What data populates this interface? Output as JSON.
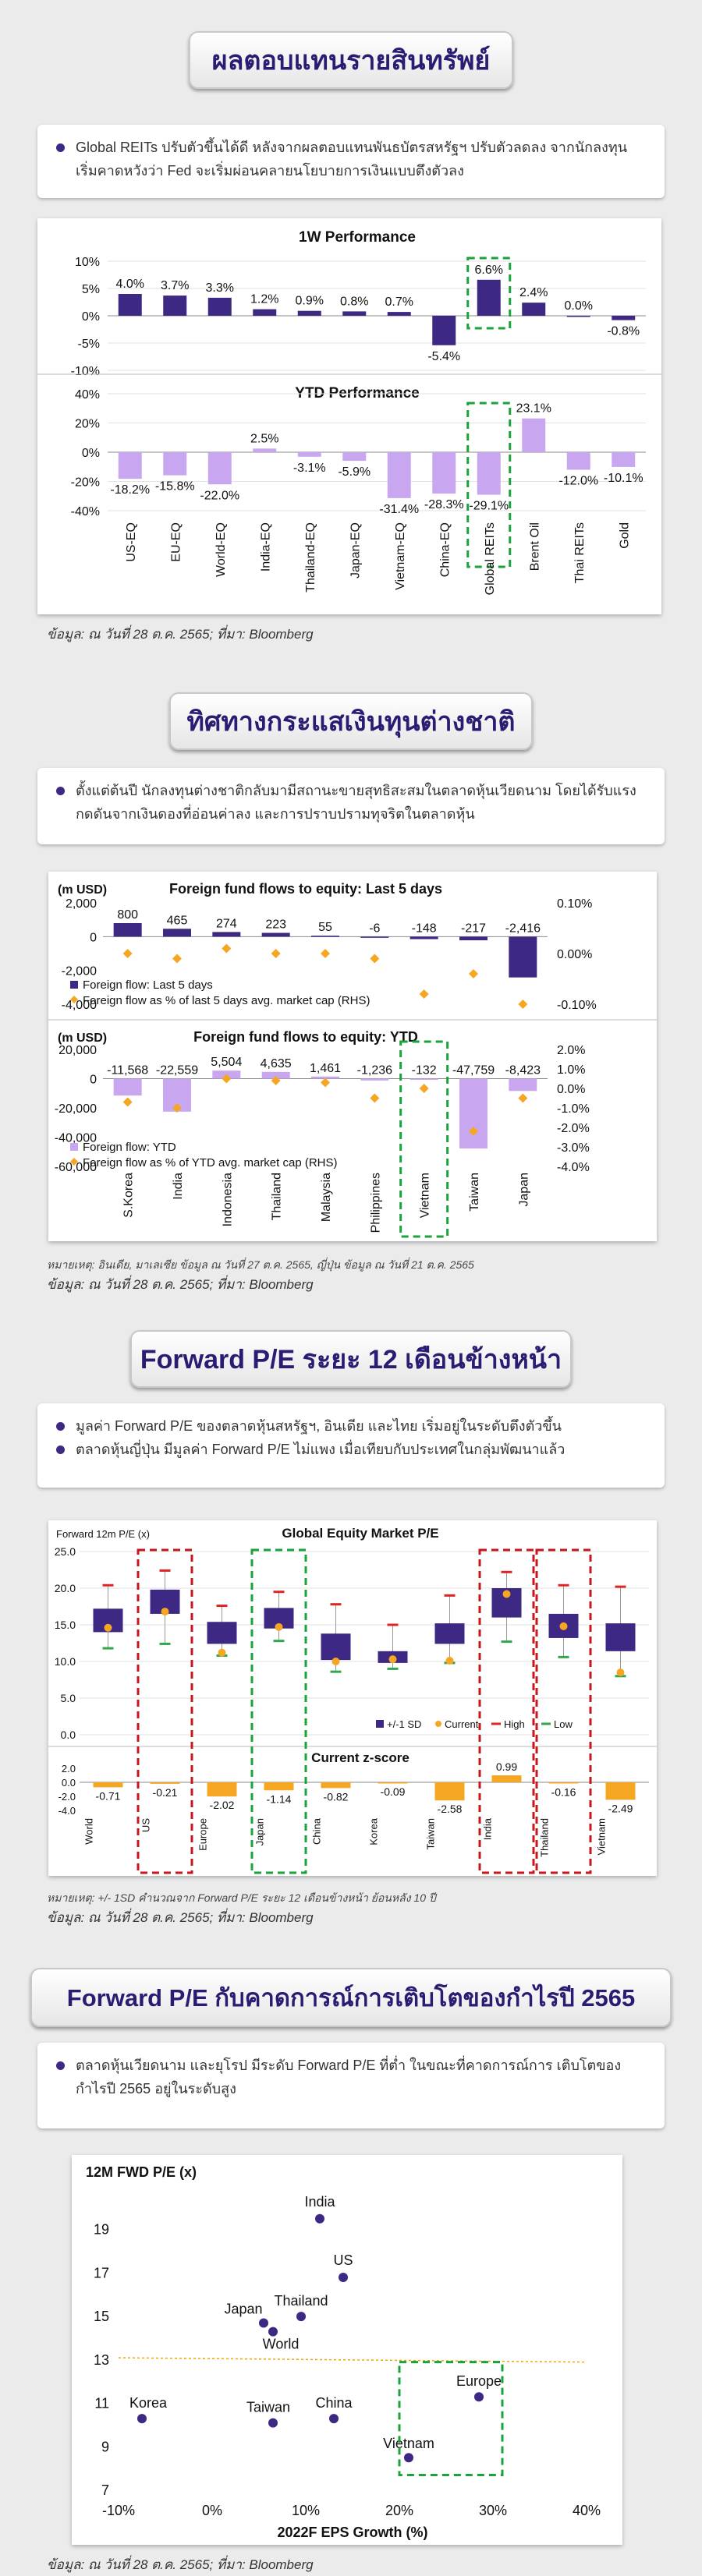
{
  "sections": [
    {
      "title": "ผลตอบแทนรายสินทรัพย์",
      "bullets": [
        "Global REITs ปรับตัวขึ้นได้ดี หลังจากผลตอบแทนพันธบัตรสหรัฐฯ ปรับตัวลดลง จากนักลงทุนเริ่มคาดหวังว่า Fed จะเริ่มผ่อนคลายนโยบายการเงินแบบตึงตัวลง"
      ],
      "source": "ข้อมูล: ณ วันที่ 28 ต.ค. 2565; ที่มา: Bloomberg"
    },
    {
      "title": "ทิศทางกระแสเงินทุนต่างชาติ",
      "bullets": [
        "ตั้งแต่ต้นปี นักลงทุนต่างชาติกลับมามีสถานะขายสุทธิสะสมในตลาดหุ้นเวียดนาม โดยได้รับแรงกดดันจากเงินดองที่อ่อนค่าลง และการปราบปรามทุจริตในตลาดหุ้น"
      ],
      "note": "หมายเหตุ: อินเดีย, มาเลเซีย ข้อมูล ณ วันที่ 27 ต.ค. 2565, ญี่ปุ่น ข้อมูล ณ วันที่ 21 ต.ค. 2565",
      "source": "ข้อมูล: ณ วันที่ 28 ต.ค. 2565; ที่มา: Bloomberg"
    },
    {
      "title": "Forward P/E ระยะ 12 เดือนข้างหน้า",
      "bullets": [
        "มูลค่า Forward P/E ของตลาดหุ้นสหรัฐฯ, อินเดีย และไทย เริ่มอยู่ในระดับตึงตัวขึ้น",
        "ตลาดหุ้นญี่ปุ่น มีมูลค่า Forward P/E ไม่แพง เมื่อเทียบกับประเทศในกลุ่มพัฒนาแล้ว"
      ],
      "note": "หมายเหตุ: +/- 1SD คำนวณจาก Forward P/E ระยะ 12 เดือนข้างหน้า ย้อนหลัง 10 ปี",
      "source": "ข้อมูล: ณ วันที่ 28 ต.ค. 2565; ที่มา: Bloomberg"
    },
    {
      "title": "Forward P/E กับคาดการณ์การเติบโตของกำไรปี 2565",
      "bullets": [
        "ตลาดหุ้นเวียดนาม และยุโรป มีระดับ Forward P/E ที่ต่ำ ในขณะที่คาดการณ์การ เติบโตของกำไรปี 2565 อยู่ในระดับสูง"
      ],
      "source": "ข้อมูล: ณ วันที่ 28 ต.ค. 2565; ที่มา: Bloomberg"
    }
  ],
  "chart_data": [
    {
      "type": "bar",
      "title": "1W Performance",
      "categories": [
        "US-EQ",
        "EU-EQ",
        "World-EQ",
        "India-EQ",
        "Thailand-EQ",
        "Japan-EQ",
        "Vietnam-EQ",
        "China-EQ",
        "Global REITs",
        "Brent Oil",
        "Thai REITs",
        "Gold"
      ],
      "values": [
        4.0,
        3.7,
        3.3,
        1.2,
        0.9,
        0.8,
        0.7,
        -5.4,
        6.6,
        2.4,
        0.0,
        -0.8
      ],
      "labels": [
        "4.0%",
        "3.7%",
        "3.3%",
        "1.2%",
        "0.9%",
        "0.8%",
        "0.7%",
        "-5.4%",
        "6.6%",
        "2.4%",
        "0.0%",
        "-0.8%"
      ],
      "ylim": [
        -10,
        10
      ],
      "yticks": [
        "10%",
        "5%",
        "0%",
        "-5%",
        "-10%"
      ],
      "color": "#3d2883",
      "highlight": "Global REITs"
    },
    {
      "type": "bar",
      "title": "YTD Performance",
      "categories": [
        "US-EQ",
        "EU-EQ",
        "World-EQ",
        "India-EQ",
        "Thailand-EQ",
        "Japan-EQ",
        "Vietnam-EQ",
        "China-EQ",
        "Global REITs",
        "Brent Oil",
        "Thai REITs",
        "Gold"
      ],
      "values": [
        -18.2,
        -15.8,
        -22.0,
        2.5,
        -3.1,
        -5.9,
        -31.4,
        -28.3,
        -29.1,
        23.1,
        -12.0,
        -10.1
      ],
      "labels": [
        "-18.2%",
        "-15.8%",
        "-22.0%",
        "2.5%",
        "-3.1%",
        "-5.9%",
        "-31.4%",
        "-28.3%",
        "-29.1%",
        "23.1%",
        "-12.0%",
        "-10.1%"
      ],
      "ylim": [
        -40,
        40
      ],
      "yticks": [
        "40%",
        "20%",
        "0%",
        "-20%",
        "-40%"
      ],
      "color": "#c9a7f0",
      "highlight": "Global REITs"
    },
    {
      "type": "bar",
      "title": "Foreign fund flows to equity: Last 5 days",
      "ylabel": "(m USD)",
      "categories": [
        "S.Korea",
        "India",
        "Indonesia",
        "Thailand",
        "Malaysia",
        "Philippines",
        "Vietnam",
        "Taiwan",
        "Japan"
      ],
      "values": [
        800,
        465,
        274,
        223,
        55,
        -6,
        -148,
        -217,
        -2416
      ],
      "labels": [
        "800",
        "465",
        "274",
        "223",
        "55",
        "-6",
        "-148",
        "-217",
        "-2,416"
      ],
      "pct_of_mcap": [
        0.0,
        -0.01,
        0.01,
        0.0,
        0.0,
        -0.01,
        -0.08,
        -0.04,
        -0.1
      ],
      "ylim": [
        -4000,
        2000
      ],
      "yticks": [
        "2,000",
        "0",
        "-2,000",
        "-4,000"
      ],
      "rticks": [
        "0.10%",
        "0.00%",
        "-0.10%"
      ],
      "legend": [
        "Foreign flow: Last 5 days",
        "Foreign flow as % of last 5 days avg. market cap (RHS)"
      ]
    },
    {
      "type": "bar",
      "title": "Foreign fund flows to equity: YTD",
      "ylabel": "(m USD)",
      "categories": [
        "S.Korea",
        "India",
        "Indonesia",
        "Thailand",
        "Malaysia",
        "Philippines",
        "Vietnam",
        "Taiwan",
        "Japan"
      ],
      "values": [
        -11568,
        -22559,
        5504,
        4635,
        1461,
        -1236,
        -132,
        -47759,
        -8423
      ],
      "labels": [
        "-11,568",
        "-22,559",
        "5,504",
        "4,635",
        "1,461",
        "-1,236",
        "-132",
        "-47,759",
        "-8,423"
      ],
      "pct_of_mcap": [
        -0.7,
        -1.0,
        0.5,
        0.4,
        0.3,
        -0.5,
        0.0,
        -2.2,
        -0.5
      ],
      "ylim": [
        -60000,
        20000
      ],
      "yticks": [
        "20,000",
        "0",
        "-20,000",
        "-40,000",
        "-60,000"
      ],
      "rticks": [
        "2.0%",
        "1.0%",
        "0.0%",
        "-1.0%",
        "-2.0%",
        "-3.0%",
        "-4.0%"
      ],
      "legend": [
        "Foreign flow: YTD",
        "Foreign flow as % of YTD avg. market cap (RHS)"
      ],
      "highlight": "Vietnam"
    },
    {
      "type": "bar",
      "title": "Global Equity Market P/E",
      "ylabel": "Forward 12m P/E (x)",
      "categories": [
        "World",
        "US",
        "Europe",
        "Japan",
        "China",
        "Korea",
        "Taiwan",
        "India",
        "Thailand",
        "Vietnam"
      ],
      "sd_low": [
        14.0,
        16.5,
        12.4,
        14.5,
        10.2,
        9.8,
        12.4,
        16.0,
        13.2,
        11.4
      ],
      "sd_high": [
        17.2,
        19.8,
        15.4,
        17.3,
        13.8,
        11.4,
        15.2,
        20.0,
        16.5,
        15.2
      ],
      "current": [
        14.6,
        16.8,
        11.2,
        14.7,
        10.0,
        10.3,
        10.1,
        19.2,
        14.8,
        8.5
      ],
      "high": [
        20.4,
        22.4,
        17.6,
        19.5,
        17.8,
        15.0,
        19.0,
        22.2,
        20.4,
        20.2
      ],
      "low": [
        11.8,
        12.4,
        10.8,
        12.8,
        8.6,
        9.0,
        9.8,
        12.7,
        10.6,
        8.0
      ],
      "ylim": [
        0,
        25
      ],
      "yticks": [
        "25.0",
        "20.0",
        "15.0",
        "10.0",
        "5.0",
        "0.0"
      ],
      "legend": [
        "+/-1 SD",
        "Current",
        "High",
        "Low"
      ],
      "highlight_red": [
        "US",
        "India",
        "Thailand"
      ],
      "highlight_green": [
        "Japan"
      ]
    },
    {
      "type": "bar",
      "title": "Current z-score",
      "categories": [
        "World",
        "US",
        "Europe",
        "Japan",
        "China",
        "Korea",
        "Taiwan",
        "India",
        "Thailand",
        "Vietnam"
      ],
      "values": [
        -0.71,
        -0.21,
        -2.02,
        -1.14,
        -0.82,
        -0.09,
        -2.58,
        0.99,
        -0.16,
        -2.49
      ],
      "labels": [
        "-0.71",
        "-0.21",
        "-2.02",
        "-1.14",
        "-0.82",
        "-0.09",
        "-2.58",
        "0.99",
        "-0.16",
        "-2.49"
      ],
      "ylim": [
        -4,
        2
      ],
      "yticks": [
        "2.0",
        "0.0",
        "-2.0",
        "-4.0"
      ]
    },
    {
      "type": "scatter",
      "ylabel": "12M FWD P/E (x)",
      "xlabel": "2022F EPS Growth (%)",
      "xticks": [
        "-10%",
        "0%",
        "10%",
        "20%",
        "30%",
        "40%"
      ],
      "yticks": [
        "7",
        "9",
        "11",
        "13",
        "15",
        "17",
        "19"
      ],
      "xlim": [
        -10,
        40
      ],
      "ylim": [
        7,
        21
      ],
      "points": [
        {
          "name": "India",
          "x": 11.5,
          "y": 19.5
        },
        {
          "name": "US",
          "x": 14,
          "y": 16.8
        },
        {
          "name": "Thailand",
          "x": 9.5,
          "y": 15.0
        },
        {
          "name": "Japan",
          "x": 5.5,
          "y": 14.7
        },
        {
          "name": "World",
          "x": 6.5,
          "y": 14.3
        },
        {
          "name": "Korea",
          "x": -7.5,
          "y": 10.3
        },
        {
          "name": "Taiwan",
          "x": 6.5,
          "y": 10.1
        },
        {
          "name": "China",
          "x": 13,
          "y": 10.3
        },
        {
          "name": "Europe",
          "x": 28.5,
          "y": 11.3
        },
        {
          "name": "Vietnam",
          "x": 21,
          "y": 8.5
        }
      ]
    }
  ]
}
